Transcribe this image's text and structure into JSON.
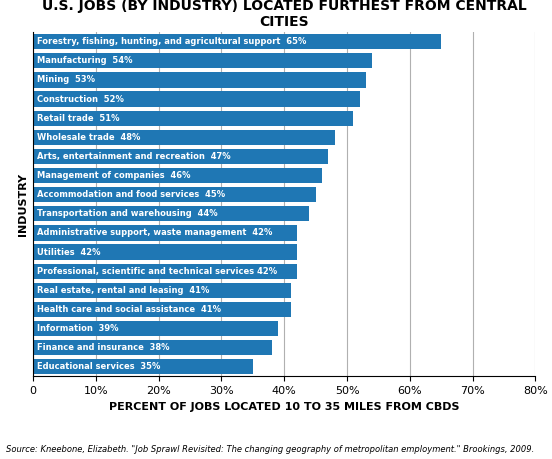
{
  "chart_data": {
    "type": "bar",
    "orientation": "horizontal",
    "title": "U.S. JOBS (BY INDUSTRY) LOCATED FURTHEST FROM CENTRAL CITIES",
    "x_label": "PERCENT OF JOBS LOCATED 10 TO 35 MILES FROM CBDS",
    "y_label": "INDUSTRY",
    "source": "Source: Kneebone, Elizabeth. \"Job Sprawl Revisited: The changing geography of metropolitan employment.\" Brookings, 2009.",
    "categories": [
      "Forestry, fishing, hunting, and agricultural support  65%",
      "Manufacturing  54%",
      "Mining  53%",
      "Construction  52%",
      "Retail trade  51%",
      "Wholesale trade  48%",
      "Arts, entertainment and recreation  47%",
      "Management of companies  46%",
      "Accommodation and food services  45%",
      "Transportation and warehousing  44%",
      "Administrative support, waste management  42%",
      "Utilities  42%",
      "Professional, scientific and technical services 42%",
      "Real estate, rental and leasing  41%",
      "Health care and social assistance  41%",
      "Information  39%",
      "Finance and insurance  38%",
      "Educational services  35%"
    ],
    "values": [
      65,
      54,
      53,
      52,
      51,
      48,
      47,
      46,
      45,
      44,
      42,
      42,
      42,
      41,
      41,
      39,
      38,
      35
    ],
    "xlim": [
      0,
      80
    ],
    "xticks": [
      0,
      {
        "value": 10,
        "label": "10%"
      },
      {
        "value": 20,
        "label": "20%"
      },
      {
        "value": 30,
        "label": "30%"
      },
      {
        "value": 40,
        "label": "40%"
      },
      {
        "value": 50,
        "label": "50%"
      },
      {
        "value": 60,
        "label": "60%"
      },
      {
        "value": 70,
        "label": "70%"
      },
      {
        "value": 80,
        "label": "80%"
      }
    ],
    "grid": true,
    "tick_labels": "x"
  }
}
